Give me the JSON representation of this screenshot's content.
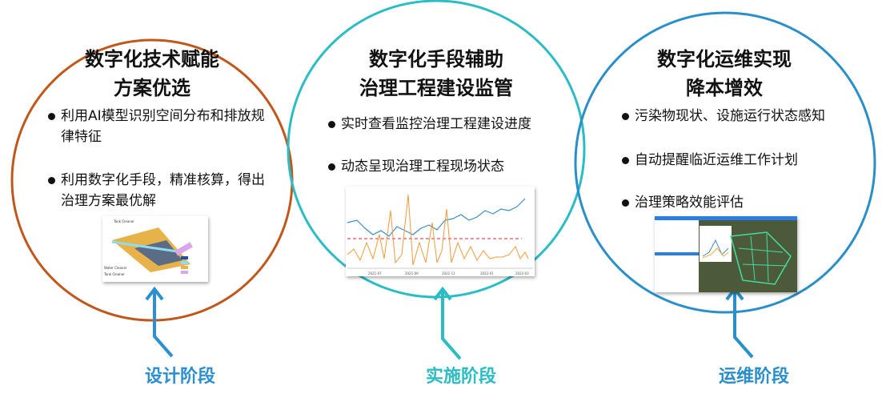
{
  "colors": {
    "design": "#c0581b",
    "implement": "#2bbcc4",
    "operate": "#2a8fc9",
    "stage_design": "#2b8fd0",
    "stage_implement": "#2bbcc4",
    "stage_operate": "#2a8fc9"
  },
  "panels": [
    {
      "title_line1": "数字化技术赋能",
      "title_line2": "方案优选",
      "items": [
        "利用AI模型识别空间分布和排放规律特征",
        "利用数字化手段，精准核算，得出治理方案最优解"
      ],
      "image": {
        "labels": [
          "Tank Cleaner",
          "Water Cleaner",
          "Tank Cleaner"
        ]
      },
      "stage": "设计阶段"
    },
    {
      "title_line1": "数字化手段辅助",
      "title_line2": "治理工程建设监管",
      "items": [
        "实时查看监控治理工程建设进度",
        "动态呈现治理工程现场状态"
      ],
      "image": {
        "x_ticks": [
          "2021-07",
          "2021-09",
          "2021-11",
          "2022-01",
          "2022-03"
        ]
      },
      "stage": "实施阶段"
    },
    {
      "title_line1": "数字化运维实现",
      "title_line2": "降本增效",
      "items": [
        "污染物现状、设施运行状态感知",
        "自动提醒临近运维工作计划",
        "治理策略效能评估"
      ],
      "stage": "运维阶段"
    }
  ]
}
